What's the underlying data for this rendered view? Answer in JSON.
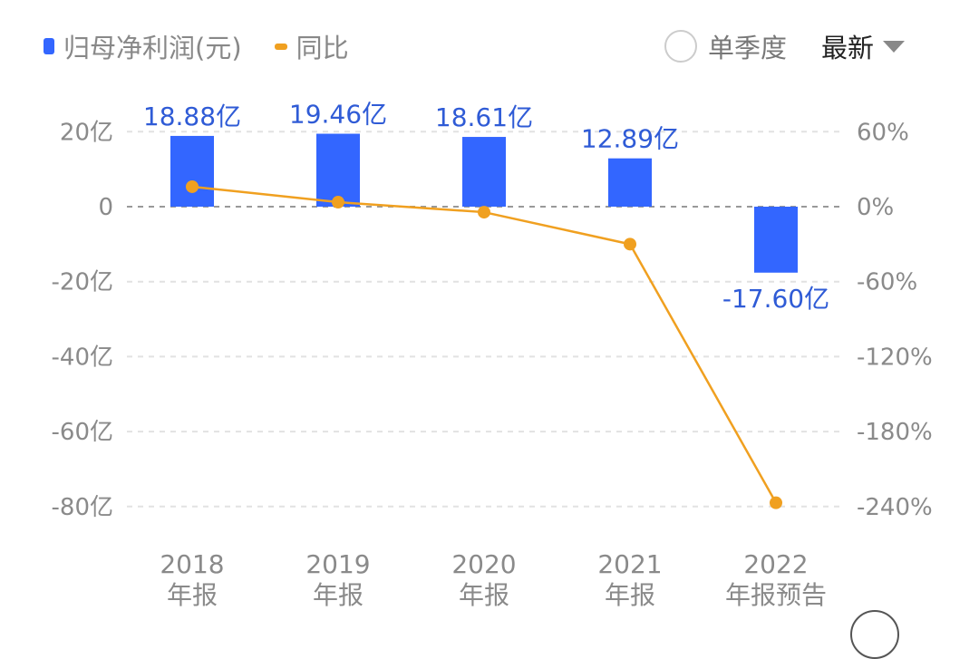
{
  "legend": {
    "bar_label": "归母净利润(元)",
    "line_label": "同比"
  },
  "controls": {
    "quarter_label": "单季度",
    "sort_label": "最新"
  },
  "colors": {
    "bar": "#3366ff",
    "line": "#f0a020",
    "value_label": "#2f5bd6",
    "axis_text": "#8a8a8a"
  },
  "chart_data": {
    "type": "bar+line",
    "categories": [
      [
        "2018",
        "年报"
      ],
      [
        "2019",
        "年报"
      ],
      [
        "2020",
        "年报"
      ],
      [
        "2021",
        "年报"
      ],
      [
        "2022",
        "年报预告"
      ]
    ],
    "series": [
      {
        "name": "归母净利润(元)",
        "type": "bar",
        "axis": "left",
        "unit": "亿",
        "values": [
          18.88,
          19.46,
          18.61,
          12.89,
          -17.6
        ],
        "labels": [
          "18.88亿",
          "19.46亿",
          "18.61亿",
          "12.89亿",
          "-17.60亿"
        ]
      },
      {
        "name": "同比",
        "type": "line",
        "axis": "right",
        "unit": "%",
        "values": [
          16,
          3.6,
          -4.4,
          -30,
          -237
        ]
      }
    ],
    "left_axis": {
      "ticks": [
        20,
        0,
        -20,
        -40,
        -60,
        -80
      ],
      "tick_labels": [
        "20亿",
        "0",
        "-20亿",
        "-40亿",
        "-60亿",
        "-80亿"
      ],
      "range": [
        -80,
        20
      ]
    },
    "right_axis": {
      "ticks": [
        60,
        0,
        -60,
        -120,
        -180,
        -240
      ],
      "tick_labels": [
        "60%",
        "0%",
        "-60%",
        "-120%",
        "-180%",
        "-240%"
      ],
      "range": [
        -240,
        60
      ]
    },
    "grid": true
  }
}
